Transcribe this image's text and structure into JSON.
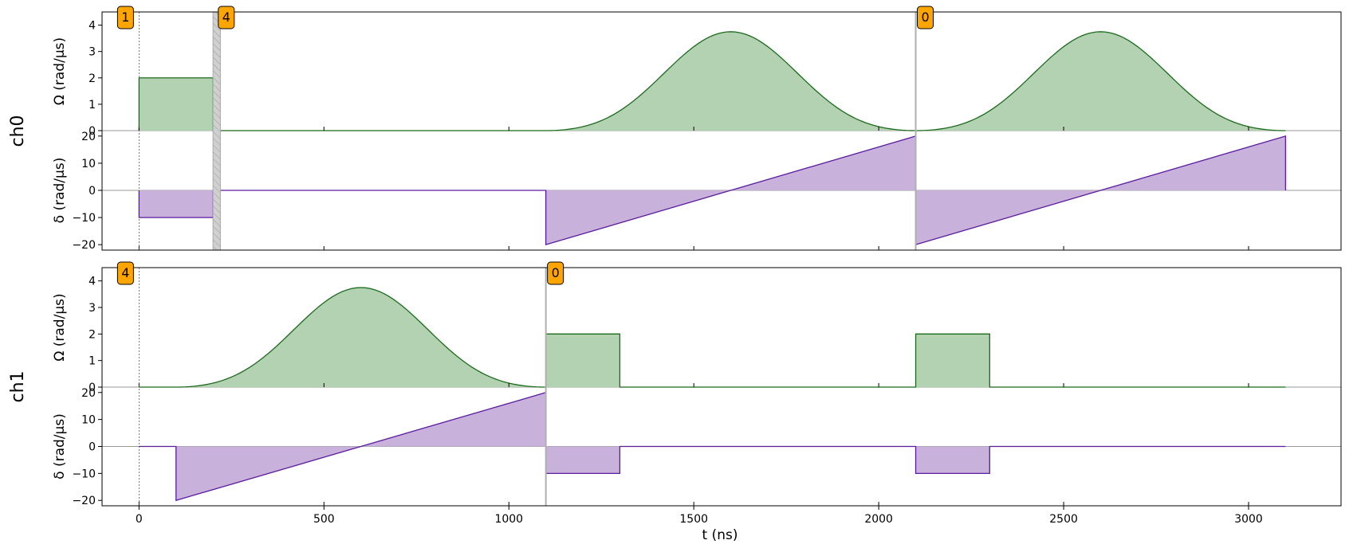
{
  "chart_data": {
    "type": "line",
    "xlabel": "t (ns)",
    "xlim": [
      -100,
      3250
    ],
    "xticks": [
      0,
      500,
      1000,
      1500,
      2000,
      2500,
      3000
    ],
    "colors": {
      "omega_line": "#1b6b1b",
      "omega_fill": "#b2d2b2",
      "delta_line": "#5b1ca0",
      "delta_fill": "#c8b1da",
      "marker_fill": "#ffa500",
      "hatch_fill": "#d0d0d0",
      "zero_line": "#999999",
      "barrier_line": "#b0b0b0"
    },
    "channels": [
      {
        "name": "ch0",
        "omega": {
          "ylabel": "Ω (rad/µs)",
          "ylim": [
            0,
            4.5
          ],
          "yticks": [
            0,
            1,
            2,
            3,
            4
          ],
          "pulses": [
            {
              "shape": "square",
              "t0": 0,
              "t1": 200,
              "value": 2
            },
            {
              "shape": "blackman",
              "t0": 1100,
              "t1": 2100,
              "peak": 3.75
            },
            {
              "shape": "blackman",
              "t0": 2100,
              "t1": 3100,
              "peak": 3.75
            }
          ]
        },
        "delta": {
          "ylabel": "δ (rad/µs)",
          "ylim": [
            -22,
            22
          ],
          "yticks": [
            -20,
            -10,
            0,
            10,
            20
          ],
          "pulses": [
            {
              "shape": "constant",
              "t0": 0,
              "t1": 200,
              "value": -10
            },
            {
              "shape": "ramp",
              "t0": 1100,
              "t1": 2100,
              "start": -20,
              "stop": 20
            },
            {
              "shape": "ramp",
              "t0": 2100,
              "t1": 3100,
              "start": -20,
              "stop": 20
            }
          ]
        },
        "markers": [
          {
            "label": "1",
            "t": 0
          },
          {
            "label": "4",
            "t": 210
          },
          {
            "label": "0",
            "t": 2100
          }
        ],
        "hatched_region": {
          "t0": 200,
          "t1": 220
        },
        "guide_lines": [
          {
            "t": 0,
            "style": "dotted"
          },
          {
            "t": 2100,
            "style": "solid"
          }
        ]
      },
      {
        "name": "ch1",
        "omega": {
          "ylabel": "Ω (rad/µs)",
          "ylim": [
            0,
            4.5
          ],
          "yticks": [
            0,
            1,
            2,
            3,
            4
          ],
          "pulses": [
            {
              "shape": "blackman",
              "t0": 100,
              "t1": 1100,
              "peak": 3.75
            },
            {
              "shape": "square",
              "t0": 1100,
              "t1": 1300,
              "value": 2
            },
            {
              "shape": "square",
              "t0": 2100,
              "t1": 2300,
              "value": 2
            }
          ]
        },
        "delta": {
          "ylabel": "δ (rad/µs)",
          "ylim": [
            -22,
            22
          ],
          "yticks": [
            -20,
            -10,
            0,
            10,
            20
          ],
          "pulses": [
            {
              "shape": "ramp",
              "t0": 100,
              "t1": 1100,
              "start": -20,
              "stop": 20
            },
            {
              "shape": "constant",
              "t0": 1100,
              "t1": 1300,
              "value": -10
            },
            {
              "shape": "constant",
              "t0": 2100,
              "t1": 2300,
              "value": -10
            }
          ]
        },
        "markers": [
          {
            "label": "4",
            "t": 0
          },
          {
            "label": "0",
            "t": 1100
          }
        ],
        "hatched_region": null,
        "guide_lines": [
          {
            "t": 0,
            "style": "dotted"
          },
          {
            "t": 1100,
            "style": "solid"
          }
        ]
      }
    ]
  }
}
